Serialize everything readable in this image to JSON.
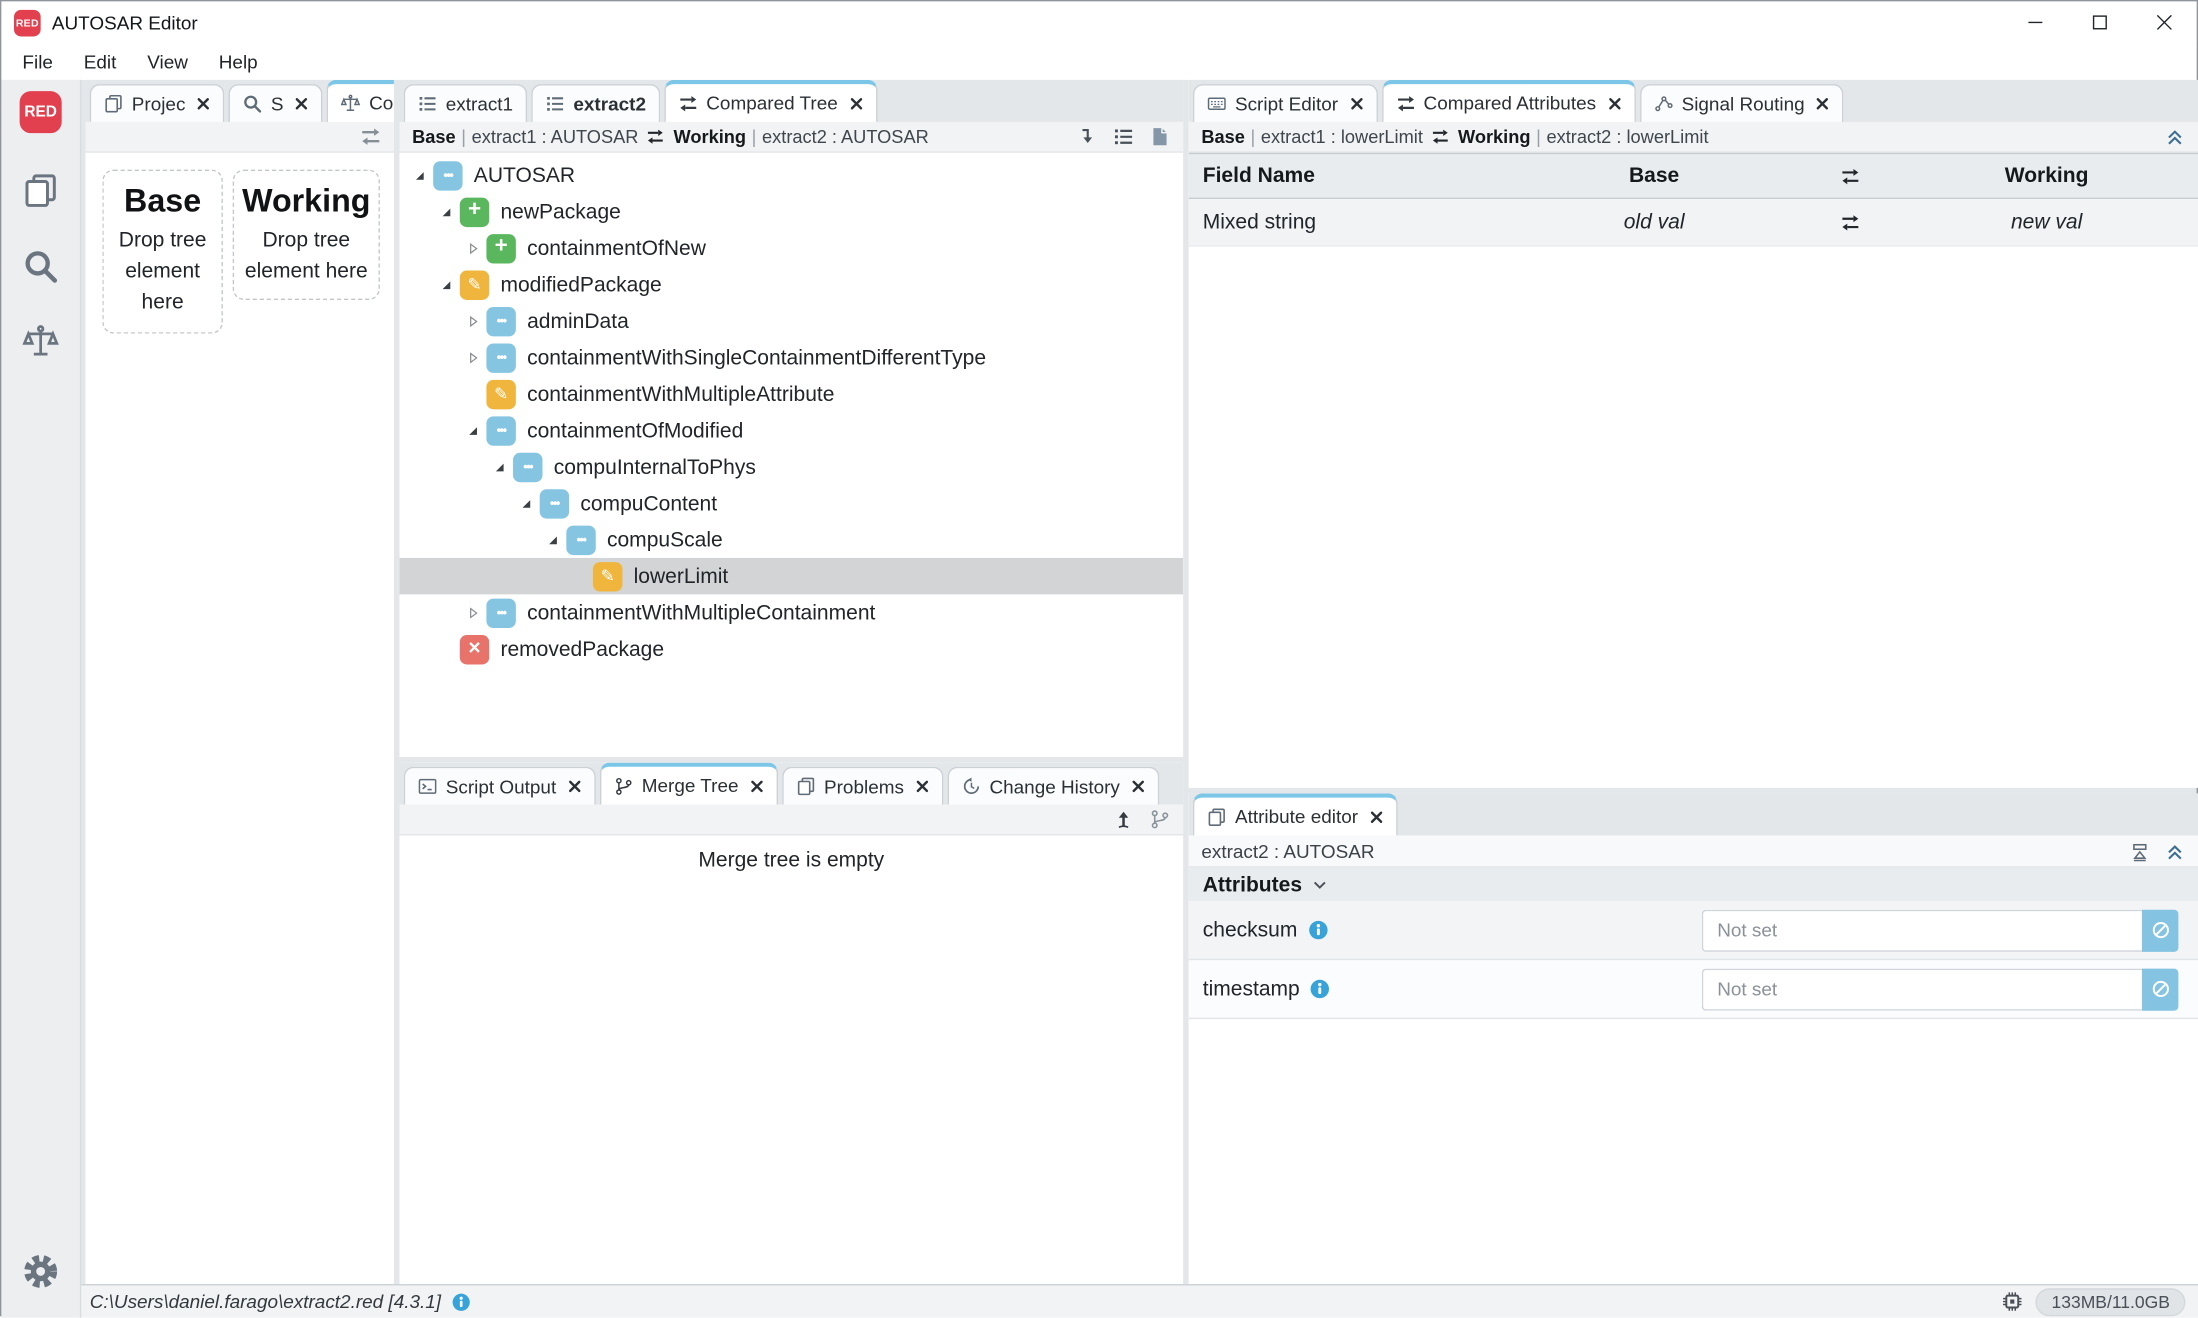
{
  "window": {
    "logo_text": "RED",
    "title": "AUTOSAR Editor"
  },
  "menu": {
    "items": [
      "File",
      "Edit",
      "View",
      "Help"
    ]
  },
  "left_panel": {
    "tabs": [
      {
        "label": "Projec",
        "icon": "pages-icon"
      },
      {
        "label": "S",
        "icon": "search-icon"
      },
      {
        "label": "Co",
        "icon": "scales-icon",
        "active": true
      }
    ],
    "drop_zones": [
      {
        "title": "Base",
        "hint": "Drop tree element here"
      },
      {
        "title": "Working",
        "hint": "Drop tree element here"
      }
    ]
  },
  "tree_panel": {
    "tabs": [
      {
        "label": "extract1",
        "icon": "list-icon"
      },
      {
        "label": "extract2",
        "icon": "list-icon",
        "bold": true
      },
      {
        "label": "Compared Tree",
        "icon": "swap-icon",
        "active": true,
        "closable": true
      }
    ],
    "breadcrumb": {
      "base_label": "Base",
      "base_value": "extract1 : AUTOSAR",
      "working_label": "Working",
      "working_value": "extract2 : AUTOSAR"
    },
    "rows": [
      {
        "label": "AUTOSAR",
        "icon": "dots",
        "level": 0,
        "expander": "expanded"
      },
      {
        "label": "newPackage",
        "icon": "added",
        "level": 1,
        "expander": "expanded"
      },
      {
        "label": "containmentOfNew",
        "icon": "added",
        "level": 2,
        "expander": "collapsed"
      },
      {
        "label": "modifiedPackage",
        "icon": "modified",
        "level": 1,
        "expander": "expanded"
      },
      {
        "label": "adminData",
        "icon": "dots",
        "level": 2,
        "expander": "collapsed"
      },
      {
        "label": "containmentWithSingleContainmentDifferentType",
        "icon": "dots",
        "level": 2,
        "expander": "collapsed"
      },
      {
        "label": "containmentWithMultipleAttribute",
        "icon": "modified",
        "level": 2,
        "expander": "none"
      },
      {
        "label": "containmentOfModified",
        "icon": "dots",
        "level": 2,
        "expander": "expanded"
      },
      {
        "label": "compuInternalToPhys",
        "icon": "dots",
        "level": 3,
        "expander": "expanded"
      },
      {
        "label": "compuContent",
        "icon": "dots",
        "level": 4,
        "expander": "expanded"
      },
      {
        "label": "compuScale",
        "icon": "dots",
        "level": 5,
        "expander": "expanded"
      },
      {
        "label": "lowerLimit",
        "icon": "modified",
        "level": 6,
        "expander": "none",
        "selected": true
      },
      {
        "label": "containmentWithMultipleContainment",
        "icon": "dots",
        "level": 2,
        "expander": "collapsed"
      },
      {
        "label": "removedPackage",
        "icon": "removed",
        "level": 1,
        "expander": "none"
      }
    ]
  },
  "merge_panel": {
    "tabs": [
      {
        "label": "Script Output",
        "icon": "terminal-icon",
        "closable": true
      },
      {
        "label": "Merge Tree",
        "icon": "branch-icon",
        "active": true,
        "closable": true
      },
      {
        "label": "Problems",
        "icon": "pages-icon",
        "closable": true
      },
      {
        "label": "Change History",
        "icon": "history-icon",
        "closable": true
      }
    ],
    "empty_text": "Merge tree is empty"
  },
  "attributes_panel": {
    "tabs": [
      {
        "label": "Script Editor",
        "icon": "keyboard-icon",
        "closable": true
      },
      {
        "label": "Compared Attributes",
        "icon": "swap-icon",
        "active": true,
        "closable": true
      },
      {
        "label": "Signal Routing",
        "icon": "signal-icon",
        "closable": true
      }
    ],
    "breadcrumb": {
      "base_label": "Base",
      "base_value": "extract1 : lowerLimit",
      "working_label": "Working",
      "working_value": "extract2 : lowerLimit"
    },
    "table": {
      "columns": {
        "field": "Field Name",
        "base": "Base",
        "working": "Working"
      },
      "rows": [
        {
          "field": "Mixed string",
          "base": "old val",
          "working": "new val"
        }
      ]
    }
  },
  "attribute_editor": {
    "tab": {
      "label": "Attribute editor",
      "icon": "pages-icon",
      "active": true,
      "closable": true
    },
    "breadcrumb": "extract2 : AUTOSAR",
    "section_label": "Attributes",
    "fields": [
      {
        "name": "checksum",
        "placeholder": "Not set"
      },
      {
        "name": "timestamp",
        "placeholder": "Not set"
      }
    ]
  },
  "status_bar": {
    "path": "C:\\Users\\daniel.farago\\extract2.red [4.3.1]",
    "memory": "133MB/11.0GB"
  },
  "colors": {
    "accent_tab": "#7cc7e8",
    "added": "#5bb75e",
    "modified": "#f0b53c",
    "removed": "#e8736b",
    "container": "#85c5e2",
    "logo": "#e2404f",
    "info": "#38a3d8",
    "selected_row": "#d2d4d5"
  }
}
